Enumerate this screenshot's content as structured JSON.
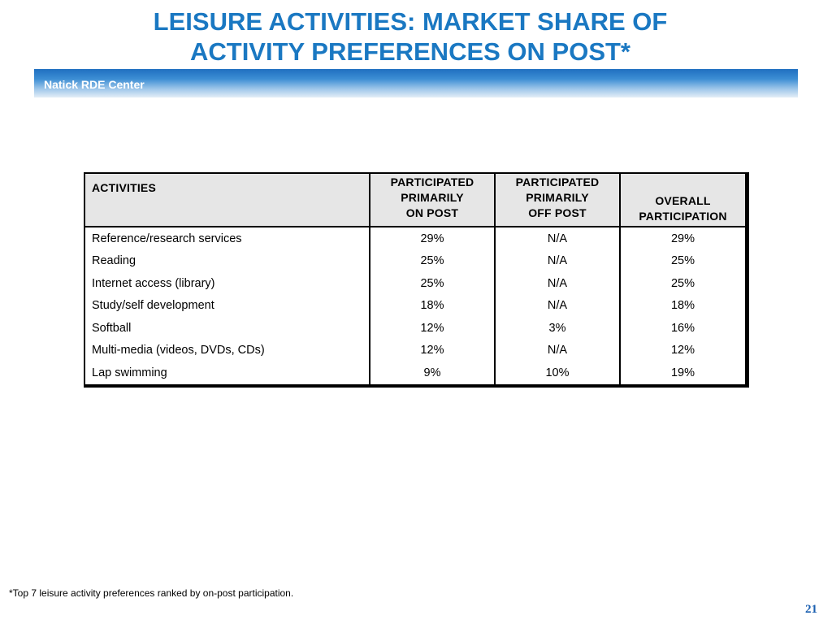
{
  "header": {
    "title_line1": "LEISURE ACTIVITIES: MARKET SHARE OF",
    "title_line2": "ACTIVITY PREFERENCES ON POST*",
    "band_label": "Natick RDE Center"
  },
  "table": {
    "columns": {
      "activities": "ACTIVITIES",
      "on_post": [
        "PARTICIPATED",
        "PRIMARILY",
        "ON POST"
      ],
      "off_post": [
        "PARTICIPATED",
        "PRIMARILY",
        "OFF POST"
      ],
      "overall": [
        "OVERALL",
        "PARTICIPATION"
      ]
    },
    "rows": [
      {
        "activity": "Reference/research services",
        "on_post": "29%",
        "off_post": "N/A",
        "overall": "29%"
      },
      {
        "activity": "Reading",
        "on_post": "25%",
        "off_post": "N/A",
        "overall": "25%"
      },
      {
        "activity": "Internet access (library)",
        "on_post": "25%",
        "off_post": "N/A",
        "overall": "25%"
      },
      {
        "activity": "Study/self development",
        "on_post": "18%",
        "off_post": "N/A",
        "overall": "18%"
      },
      {
        "activity": "Softball",
        "on_post": "12%",
        "off_post": "3%",
        "overall": "16%"
      },
      {
        "activity": "Multi-media (videos, DVDs, CDs)",
        "on_post": "12%",
        "off_post": "N/A",
        "overall": "12%"
      },
      {
        "activity": "Lap swimming",
        "on_post": "9%",
        "off_post": "10%",
        "overall": "19%"
      }
    ]
  },
  "footnote": "*Top 7 leisure activity preferences ranked by on-post participation.",
  "page_number": "21"
}
